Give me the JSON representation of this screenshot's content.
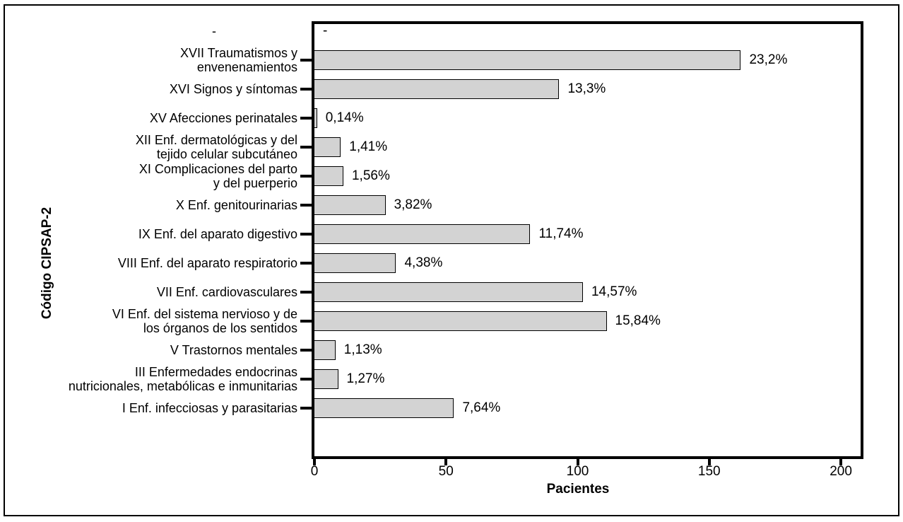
{
  "chart_data": {
    "type": "bar",
    "orientation": "horizontal",
    "title": "",
    "xlabel": "Pacientes",
    "ylabel": "Código CIPSAP-2",
    "xlim": [
      0,
      207.5
    ],
    "grid": false,
    "legend": false,
    "bar_color": "#d3d3d3",
    "bar_border_color": "#000000",
    "x_ticks": [
      {
        "value": 0,
        "label": "0"
      },
      {
        "value": 50,
        "label": "50"
      },
      {
        "value": 100,
        "label": "100"
      },
      {
        "value": 150,
        "label": "150"
      },
      {
        "value": 200,
        "label": "200"
      }
    ],
    "rows": [
      {
        "category": "-",
        "value": null,
        "pct_label": "-",
        "tick": false
      },
      {
        "category": "XVII Traumatismos y\nenvenenamientos",
        "value": 162,
        "pct_label": "23,2%",
        "tick": true
      },
      {
        "category": "XVI Signos y síntomas",
        "value": 93,
        "pct_label": "13,3%",
        "tick": true
      },
      {
        "category": "XV Afecciones perinatales",
        "value": 1,
        "pct_label": "0,14%",
        "tick": true
      },
      {
        "category": "XII Enf. dermatológicas y del\ntejido celular subcutáneo",
        "value": 10,
        "pct_label": "1,41%",
        "tick": true
      },
      {
        "category": "XI Complicaciones del parto\ny del puerperio",
        "value": 11,
        "pct_label": "1,56%",
        "tick": true
      },
      {
        "category": "X Enf. genitourinarias",
        "value": 27,
        "pct_label": "3,82%",
        "tick": true
      },
      {
        "category": "IX Enf. del aparato digestivo",
        "value": 82,
        "pct_label": "11,74%",
        "tick": true
      },
      {
        "category": "VIII Enf. del aparato respiratorio",
        "value": 31,
        "pct_label": "4,38%",
        "tick": true
      },
      {
        "category": "VII Enf. cardiovasculares",
        "value": 102,
        "pct_label": "14,57%",
        "tick": true
      },
      {
        "category": "VI Enf. del sistema nervioso y de\nlos órganos de los sentidos",
        "value": 111,
        "pct_label": "15,84%",
        "tick": true
      },
      {
        "category": "V Trastornos mentales",
        "value": 8,
        "pct_label": "1,13%",
        "tick": true
      },
      {
        "category": "III Enfermedades endocrinas\nnutricionales, metabólicas e inmunitarias",
        "value": 9,
        "pct_label": "1,27%",
        "tick": true
      },
      {
        "category": "I Enf. infecciosas y parasitarias",
        "value": 53,
        "pct_label": "7,64%",
        "tick": true
      }
    ]
  }
}
